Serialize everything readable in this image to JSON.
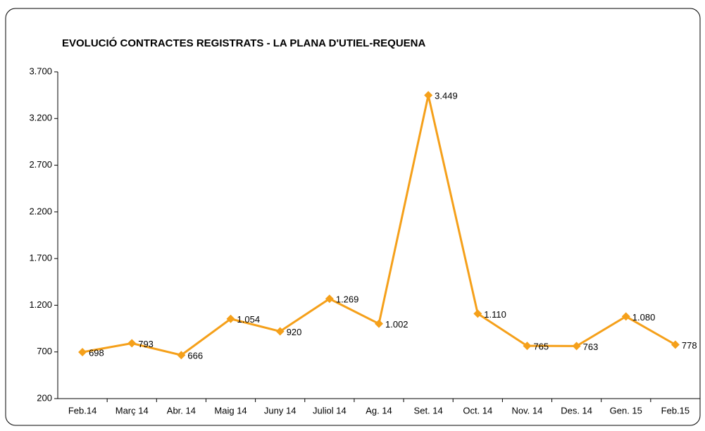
{
  "chart_data": {
    "type": "line",
    "title": "EVOLUCIÓ CONTRACTES REGISTRATS - LA PLANA D'UTIEL-REQUENA",
    "categories": [
      "Feb.14",
      "Març 14",
      "Abr. 14",
      "Maig 14",
      "Juny 14",
      "Juliol 14",
      "Ag. 14",
      "Set. 14",
      "Oct. 14",
      "Nov. 14",
      "Des. 14",
      "Gen. 15",
      "Feb.15"
    ],
    "series": [
      {
        "name": "Contractes",
        "color": "#f5a01a",
        "values": [
          698,
          793,
          666,
          1054,
          920,
          1269,
          1002,
          3449,
          1110,
          765,
          763,
          1080,
          778
        ],
        "value_labels": [
          "698",
          "793",
          "666",
          "1.054",
          "920",
          "1.269",
          "1.002",
          "3.449",
          "1.110",
          "765",
          "763",
          "1.080",
          "778"
        ]
      }
    ],
    "ylim": [
      200,
      3700
    ],
    "yticks": [
      {
        "value": 200,
        "label": "200"
      },
      {
        "value": 700,
        "label": "700"
      },
      {
        "value": 1200,
        "label": "1.200"
      },
      {
        "value": 1700,
        "label": "1.700"
      },
      {
        "value": 2200,
        "label": "2.200"
      },
      {
        "value": 2700,
        "label": "2.700"
      },
      {
        "value": 3200,
        "label": "3.200"
      },
      {
        "value": 3700,
        "label": "3.700"
      }
    ],
    "grid": false
  }
}
